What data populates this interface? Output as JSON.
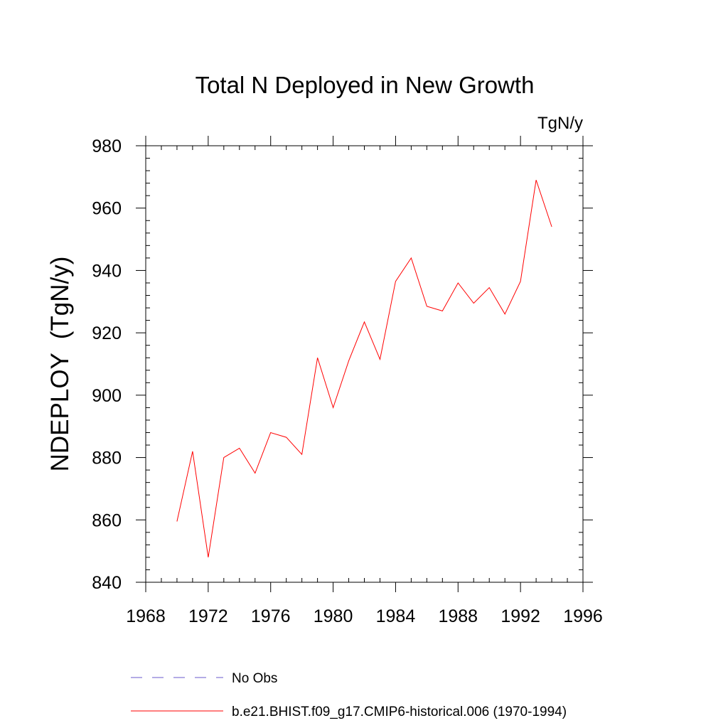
{
  "chart_data": {
    "type": "line",
    "title": "Total N Deployed in New Growth",
    "units_label": "TgN/y",
    "ylabel": "NDEPLOY  (TgN/y)",
    "xlabel": "",
    "xlim": [
      1968,
      1996
    ],
    "ylim": [
      840,
      980
    ],
    "x_ticks": [
      1968,
      1972,
      1976,
      1980,
      1984,
      1988,
      1992,
      1996
    ],
    "y_ticks": [
      840,
      860,
      880,
      900,
      920,
      940,
      960,
      980
    ],
    "x_minor_step": 1,
    "y_minor_step": 4,
    "grid": false,
    "x": [
      1970,
      1971,
      1972,
      1973,
      1974,
      1975,
      1976,
      1977,
      1978,
      1979,
      1980,
      1981,
      1982,
      1983,
      1984,
      1985,
      1986,
      1987,
      1988,
      1989,
      1990,
      1991,
      1992,
      1993,
      1994
    ],
    "series": [
      {
        "name": "b.e21.BHIST.f09_g17.CMIP6-historical.006 (1970-1994)",
        "color": "#ff0000",
        "dash": "solid",
        "values": [
          859.5,
          882,
          848,
          880,
          883,
          875,
          888,
          886.5,
          881,
          912,
          896,
          911,
          923.5,
          911.5,
          936.5,
          944,
          928.5,
          927,
          936,
          929.5,
          934.5,
          926,
          936.5,
          969,
          954
        ]
      }
    ],
    "legend": {
      "placement": "bottom",
      "entries": [
        {
          "label": "No Obs",
          "color": "#6a5acd",
          "dash": "dashed"
        },
        {
          "label": "b.e21.BHIST.f09_g17.CMIP6-historical.006 (1970-1994)",
          "color": "#ff0000",
          "dash": "solid"
        }
      ]
    }
  }
}
